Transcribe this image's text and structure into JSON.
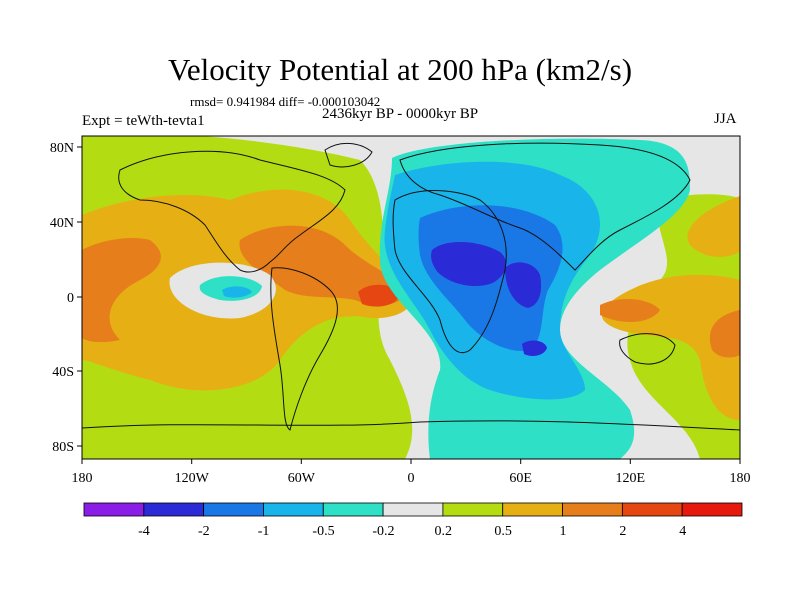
{
  "title": "Velocity Potential at 200 hPa (km2/s)",
  "stats": "rmsd= 0.941984 diff= -0.000103042",
  "subtitle": "2436kyr BP - 0000kyr BP",
  "experiment": "Expt = teWth-tevta1",
  "season": "JJA",
  "axes": {
    "x_ticks": [
      "180",
      "120W",
      "60W",
      "0",
      "60E",
      "120E",
      "180"
    ],
    "y_ticks": [
      "80N",
      "40N",
      "0",
      "40S",
      "80S"
    ]
  },
  "colorbar": {
    "labels": [
      "-4",
      "-2",
      "-1",
      "-0.5",
      "-0.2",
      "0.2",
      "0.5",
      "1",
      "2",
      "4"
    ],
    "colors": [
      "#8a1ee6",
      "#2a2ad6",
      "#1a78e6",
      "#18b4ea",
      "#2ee0c6",
      "#e6e6e6",
      "#b4dc12",
      "#e6b014",
      "#e67e1c",
      "#e64612",
      "#e61a0c"
    ]
  }
}
